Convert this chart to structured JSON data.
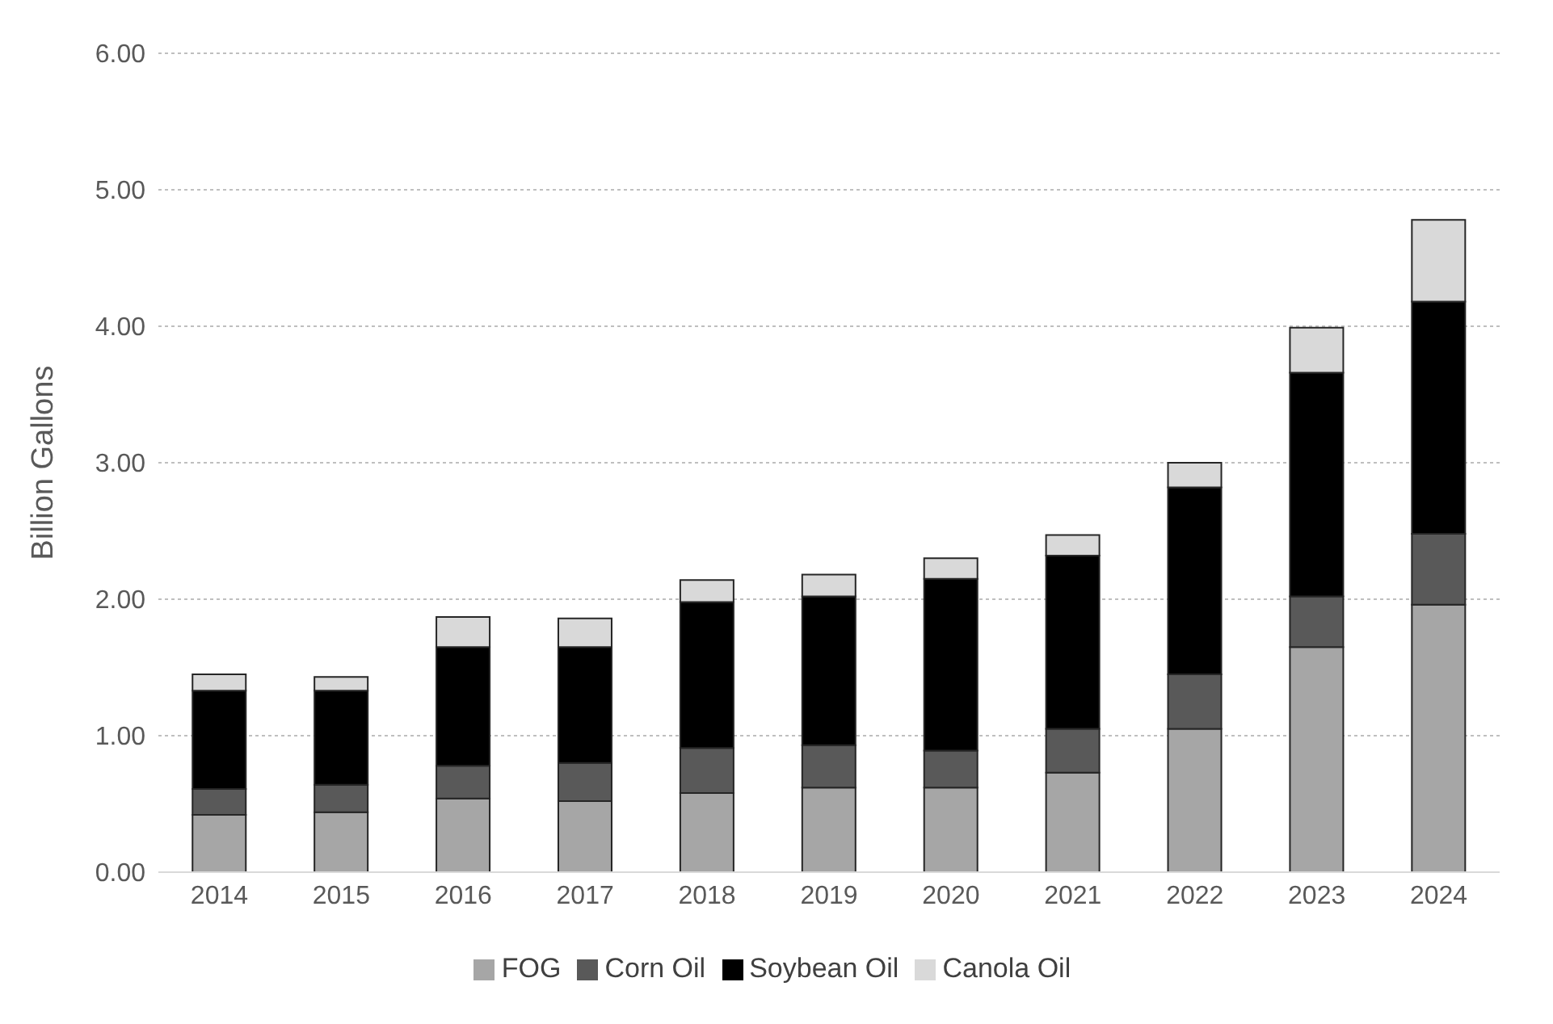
{
  "chart_data": {
    "type": "bar",
    "stacked": true,
    "ylabel": "Billion Gallons",
    "categories": [
      "2014",
      "2015",
      "2016",
      "2017",
      "2018",
      "2019",
      "2020",
      "2021",
      "2022",
      "2023",
      "2024"
    ],
    "series": [
      {
        "name": "FOG",
        "color": "#a6a6a6",
        "values": [
          0.42,
          0.44,
          0.54,
          0.52,
          0.58,
          0.62,
          0.62,
          0.73,
          1.05,
          1.65,
          1.96
        ]
      },
      {
        "name": "Corn Oil",
        "color": "#595959",
        "values": [
          0.19,
          0.2,
          0.24,
          0.28,
          0.33,
          0.31,
          0.27,
          0.32,
          0.4,
          0.37,
          0.52
        ]
      },
      {
        "name": "Soybean Oil",
        "color": "#000000",
        "values": [
          0.72,
          0.69,
          0.87,
          0.85,
          1.07,
          1.09,
          1.26,
          1.27,
          1.37,
          1.64,
          1.7
        ]
      },
      {
        "name": "Canola Oil",
        "color": "#d9d9d9",
        "values": [
          0.12,
          0.1,
          0.22,
          0.21,
          0.16,
          0.16,
          0.15,
          0.15,
          0.18,
          0.33,
          0.6
        ]
      }
    ],
    "ylim": [
      0,
      6
    ],
    "yticks": [
      {
        "value": 0,
        "label": "0.00"
      },
      {
        "value": 1,
        "label": "1.00"
      },
      {
        "value": 2,
        "label": "2.00"
      },
      {
        "value": 3,
        "label": "3.00"
      },
      {
        "value": 4,
        "label": "4.00"
      },
      {
        "value": 5,
        "label": "5.00"
      },
      {
        "value": 6,
        "label": "6.00"
      }
    ],
    "grid": "y",
    "legend": "bottom"
  }
}
